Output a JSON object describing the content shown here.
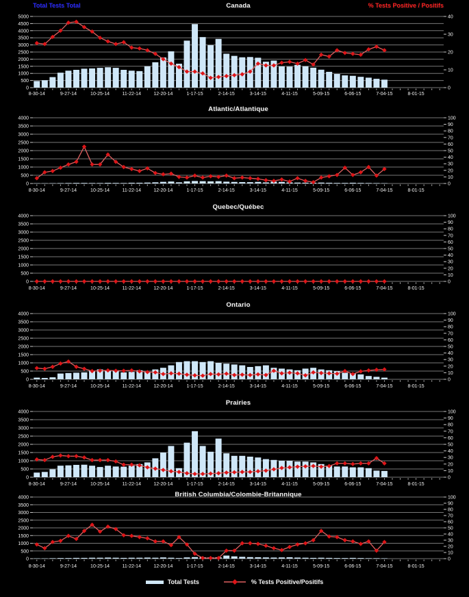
{
  "header": {
    "left_axis_series_label": "Total Tests Total",
    "right_axis_series_label": "% Tests Positive / Positifs"
  },
  "legend": {
    "bar_label": "Total Tests",
    "line_label": "% Tests Positive/Positifs"
  },
  "colors": {
    "background": "#000000",
    "bar_fill": "#cfe7f8",
    "line": "#e06060",
    "marker": "#dd1518",
    "gridline": "#787878",
    "tick": "#c8c8c8",
    "axis_text": "#f2f2f2",
    "title_text": "#efefef",
    "left_series_label": "#2727ff",
    "right_series_label": "#ff2020"
  },
  "x_axis": {
    "labels": [
      "8-30-14",
      "9-27-14",
      "10-25-14",
      "11-22-14",
      "12-20-14",
      "1-17-15",
      "2-14-15",
      "3-14-15",
      "4-11-15",
      "5-09-15",
      "6-06-15",
      "7-04-15",
      "8-01-15"
    ],
    "label_every": 4,
    "total_slots": 52
  },
  "chart_data": [
    {
      "type": "combo",
      "title": "Canada",
      "grid": true,
      "legend_position": "bottom",
      "left_axis": {
        "min": 0,
        "max": 5000,
        "step": 500,
        "ticks": [
          "5000",
          "4500",
          "4000",
          "3500",
          "3000",
          "2500",
          "2000",
          "1500",
          "1000",
          "500",
          "0"
        ]
      },
      "right_axis": {
        "min": 0,
        "max": 40,
        "step": 10,
        "ticks": [
          "40",
          "30",
          "20",
          "10",
          "0"
        ]
      },
      "series": [
        {
          "name": "Total Tests",
          "type": "bar",
          "axis": "left",
          "values": [
            460,
            520,
            740,
            1050,
            1190,
            1250,
            1330,
            1350,
            1390,
            1430,
            1390,
            1250,
            1190,
            1160,
            1500,
            1780,
            2120,
            2550,
            1680,
            3300,
            4460,
            3550,
            2980,
            3420,
            2380,
            2230,
            2130,
            2150,
            2100,
            1820,
            1900,
            1490,
            1480,
            1600,
            1500,
            1400,
            1260,
            1110,
            960,
            860,
            830,
            760,
            700,
            620,
            560
          ]
        },
        {
          "name": "% Tests Positive/Positifs",
          "type": "line",
          "axis": "right",
          "values": [
            25,
            24.5,
            28.5,
            32,
            36.5,
            37,
            34,
            31.5,
            28,
            26,
            24.5,
            25.5,
            22.5,
            22,
            21,
            19,
            16,
            13.5,
            11.5,
            9,
            9,
            8,
            5.5,
            6,
            6.5,
            7,
            7.5,
            9,
            13.5,
            12.5,
            12.5,
            14,
            14.5,
            13.5,
            15.5,
            13,
            18.5,
            17.5,
            21,
            19.5,
            19,
            18.5,
            21.5,
            23,
            21
          ]
        }
      ]
    },
    {
      "type": "combo",
      "title": "Atlantic/Atlantique",
      "grid": true,
      "left_axis": {
        "min": 0,
        "max": 4000,
        "step": 500,
        "ticks": [
          "4000",
          "3500",
          "3000",
          "2500",
          "2000",
          "1500",
          "1000",
          "500",
          "0"
        ]
      },
      "right_axis": {
        "min": 0,
        "max": 100,
        "step": 10,
        "ticks": [
          "100",
          "90",
          "80",
          "70",
          "60",
          "50",
          "40",
          "30",
          "20",
          "10",
          "0"
        ]
      },
      "series": [
        {
          "name": "Total Tests",
          "type": "bar",
          "axis": "left",
          "values": [
            15,
            15,
            20,
            25,
            30,
            35,
            35,
            30,
            30,
            40,
            35,
            30,
            45,
            45,
            55,
            70,
            100,
            120,
            70,
            130,
            150,
            140,
            130,
            140,
            110,
            95,
            85,
            80,
            95,
            65,
            115,
            95,
            65,
            55,
            50,
            45,
            55,
            45,
            35,
            35,
            45,
            35,
            30,
            25,
            20
          ]
        },
        {
          "name": "% Tests Positive/Positifs",
          "type": "line",
          "axis": "right",
          "values": [
            8,
            17,
            19,
            24,
            29,
            33,
            56,
            29,
            29,
            44,
            33,
            25,
            22,
            19,
            23,
            16,
            14,
            15,
            10,
            9,
            12,
            9,
            11,
            10,
            12,
            8,
            9,
            8,
            7,
            5,
            4,
            6,
            3,
            8,
            4,
            2,
            9,
            11,
            13,
            24,
            13,
            17,
            25,
            12,
            22
          ]
        }
      ]
    },
    {
      "type": "combo",
      "title": "Quebec/Québec",
      "grid": true,
      "left_axis": {
        "min": 0,
        "max": 4000,
        "step": 500,
        "ticks": [
          "4000",
          "3500",
          "3000",
          "2500",
          "2000",
          "1500",
          "1000",
          "500",
          "0"
        ]
      },
      "right_axis": {
        "min": 0,
        "max": 100,
        "step": 10,
        "ticks": [
          "100",
          "90",
          "80",
          "70",
          "60",
          "50",
          "40",
          "30",
          "20",
          "10",
          "0"
        ]
      },
      "series": [
        {
          "name": "Total Tests",
          "type": "bar",
          "axis": "left",
          "values": [
            0,
            0,
            0,
            0,
            0,
            0,
            0,
            0,
            0,
            0,
            0,
            0,
            0,
            0,
            0,
            0,
            0,
            0,
            0,
            0,
            0,
            0,
            0,
            0,
            0,
            0,
            0,
            0,
            0,
            0,
            0,
            0,
            0,
            0,
            0,
            0,
            0,
            0,
            0,
            0,
            0,
            0,
            0,
            0,
            0
          ]
        },
        {
          "name": "% Tests Positive/Positifs",
          "type": "line",
          "axis": "right",
          "values": [
            0,
            0,
            0,
            0,
            0,
            0,
            0,
            0,
            0,
            0,
            0,
            0,
            0,
            0,
            0,
            0,
            0,
            0,
            0,
            0,
            0,
            0,
            0,
            0,
            0,
            0,
            0,
            0,
            0,
            0,
            0,
            0,
            0,
            0,
            0,
            0,
            0,
            0,
            0,
            0,
            0,
            0,
            0,
            0,
            0
          ]
        }
      ]
    },
    {
      "type": "combo",
      "title": "Ontario",
      "grid": true,
      "left_axis": {
        "min": 0,
        "max": 4000,
        "step": 500,
        "ticks": [
          "4000",
          "3500",
          "3000",
          "2500",
          "2000",
          "1500",
          "1000",
          "500",
          "0"
        ]
      },
      "right_axis": {
        "min": 0,
        "max": 100,
        "step": 10,
        "ticks": [
          "100",
          "90",
          "80",
          "70",
          "60",
          "50",
          "40",
          "30",
          "20",
          "10",
          "0"
        ]
      },
      "series": [
        {
          "name": "Total Tests",
          "type": "bar",
          "axis": "left",
          "values": [
            100,
            80,
            120,
            350,
            380,
            400,
            420,
            520,
            600,
            550,
            550,
            420,
            450,
            550,
            450,
            600,
            700,
            850,
            1050,
            1100,
            1100,
            1050,
            1100,
            1000,
            950,
            900,
            850,
            750,
            800,
            850,
            700,
            650,
            600,
            550,
            650,
            700,
            600,
            550,
            500,
            400,
            350,
            300,
            200,
            150,
            100
          ]
        },
        {
          "name": "% Tests Positive/Positifs",
          "type": "line",
          "axis": "right",
          "values": [
            17,
            16,
            19,
            24,
            27,
            19,
            16,
            12.5,
            13,
            13.5,
            13,
            13,
            13.5,
            12,
            11,
            10.5,
            8,
            9,
            8.5,
            7,
            6,
            5.5,
            8,
            7.5,
            8.5,
            6.5,
            7,
            6.5,
            7.5,
            6.5,
            13,
            9,
            10,
            9,
            6,
            10.5,
            9.5,
            9,
            8.5,
            12.5,
            8,
            12,
            13.5,
            14.5,
            15
          ]
        }
      ]
    },
    {
      "type": "combo",
      "title": "Prairies",
      "grid": true,
      "left_axis": {
        "min": 0,
        "max": 4000,
        "step": 500,
        "ticks": [
          "4000",
          "3500",
          "3000",
          "2500",
          "2000",
          "1500",
          "1000",
          "500",
          "0"
        ]
      },
      "right_axis": {
        "min": 0,
        "max": 100,
        "step": 10,
        "ticks": [
          "100",
          "90",
          "80",
          "70",
          "60",
          "50",
          "40",
          "30",
          "20",
          "10",
          "0"
        ]
      },
      "series": [
        {
          "name": "Total Tests",
          "type": "bar",
          "axis": "left",
          "values": [
            280,
            320,
            480,
            700,
            720,
            750,
            760,
            700,
            620,
            700,
            650,
            640,
            700,
            800,
            900,
            1150,
            1500,
            1900,
            550,
            2100,
            2800,
            1900,
            1550,
            2350,
            1450,
            1300,
            1300,
            1250,
            1200,
            1100,
            1050,
            1000,
            1000,
            950,
            950,
            900,
            800,
            700,
            650,
            650,
            600,
            600,
            550,
            400,
            380
          ]
        },
        {
          "name": "% Tests Positive/Positifs",
          "type": "line",
          "axis": "right",
          "values": [
            27,
            26,
            31,
            33,
            32,
            32,
            30,
            26,
            26,
            26,
            24,
            19,
            19,
            18,
            15,
            13,
            11,
            9,
            8,
            6,
            5,
            5,
            5.5,
            6,
            7,
            7.5,
            8,
            8,
            9,
            10,
            12,
            14,
            15,
            16,
            16.5,
            17,
            16,
            17,
            21,
            21,
            20,
            21,
            21,
            29,
            21
          ]
        }
      ]
    },
    {
      "type": "combo",
      "title": "British Columbia/Colombie-Britannique",
      "grid": true,
      "left_axis": {
        "min": 0,
        "max": 4000,
        "step": 500,
        "ticks": [
          "4000",
          "3500",
          "3000",
          "2500",
          "2000",
          "1500",
          "1000",
          "500",
          "0"
        ]
      },
      "right_axis": {
        "min": 0,
        "max": 100,
        "step": 10,
        "ticks": [
          "100",
          "90",
          "80",
          "70",
          "60",
          "50",
          "40",
          "30",
          "20",
          "10",
          "0"
        ]
      },
      "series": [
        {
          "name": "Total Tests",
          "type": "bar",
          "axis": "left",
          "values": [
            20,
            20,
            30,
            40,
            40,
            50,
            50,
            60,
            60,
            70,
            60,
            50,
            60,
            60,
            70,
            60,
            80,
            60,
            40,
            80,
            100,
            90,
            80,
            90,
            200,
            150,
            120,
            100,
            90,
            80,
            70,
            80,
            90,
            70,
            60,
            50,
            60,
            50,
            40,
            40,
            50,
            40,
            30,
            30,
            25
          ]
        },
        {
          "name": "% Tests Positive/Positifs",
          "type": "line",
          "axis": "right",
          "values": [
            23,
            17,
            27,
            29,
            37,
            32,
            45,
            55,
            44,
            52,
            48,
            38,
            37,
            35,
            33,
            28,
            28,
            22,
            35,
            23,
            8,
            1,
            1,
            1,
            13,
            13,
            25,
            25,
            24,
            21,
            17,
            14,
            19,
            23,
            25,
            30,
            45,
            36,
            35,
            30,
            28,
            24,
            28,
            13,
            27
          ]
        }
      ]
    }
  ]
}
